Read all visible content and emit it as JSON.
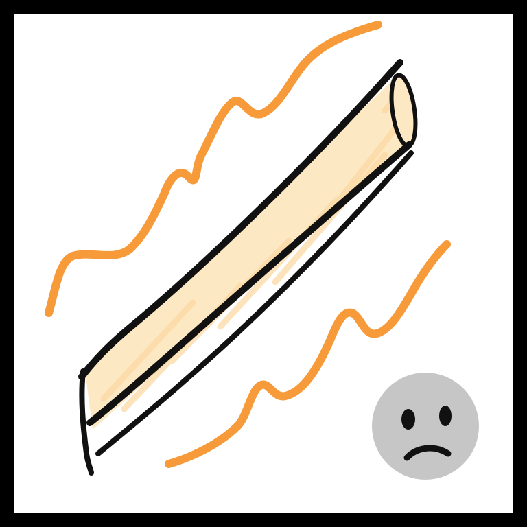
{
  "illustration": {
    "subject": "breadstick-icon",
    "mood": "sad-face-icon",
    "colors": {
      "frame": "#000000",
      "background": "#ffffff",
      "stick_fill": "#fde8c4",
      "stick_outline": "#111111",
      "heat_lines": "#f79a3a",
      "face_fill": "#c6c6c6",
      "face_features": "#111111"
    }
  }
}
